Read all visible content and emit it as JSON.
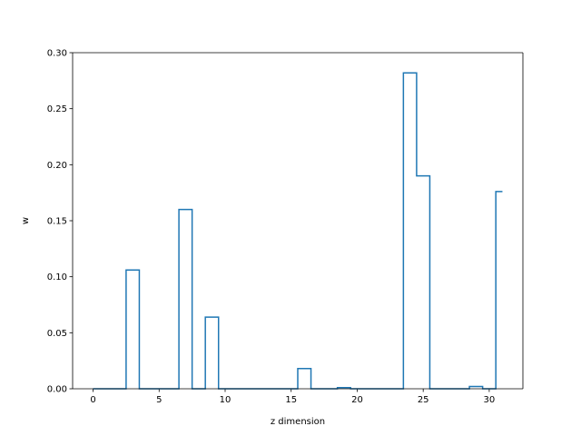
{
  "chart_data": {
    "type": "line",
    "style": "step",
    "step_where": "mid",
    "xlabel": "z dimension",
    "ylabel": "w",
    "xlim": [
      -1.55,
      32.55
    ],
    "ylim": [
      0.0,
      0.3
    ],
    "xticks": [
      0,
      5,
      10,
      15,
      20,
      25,
      30
    ],
    "xtick_labels": [
      "0",
      "5",
      "10",
      "15",
      "20",
      "25",
      "30"
    ],
    "yticks": [
      0.0,
      0.05,
      0.1,
      0.15,
      0.2,
      0.25,
      0.3
    ],
    "ytick_labels": [
      "0.00",
      "0.05",
      "0.10",
      "0.15",
      "0.20",
      "0.25",
      "0.30"
    ],
    "grid": false,
    "legend": "none",
    "line_color": "#1f77b4",
    "series": [
      {
        "x": [
          0,
          1,
          2,
          3,
          4,
          5,
          6,
          7,
          8,
          9,
          10,
          11,
          12,
          13,
          14,
          15,
          16,
          17,
          18,
          19,
          20,
          21,
          22,
          23,
          24,
          25,
          26,
          27,
          28,
          29,
          30,
          31
        ],
        "values": [
          0.0,
          0.0,
          0.0,
          0.106,
          0.0,
          0.0,
          0.0,
          0.16,
          0.0,
          0.064,
          0.0,
          0.0,
          0.0,
          0.0,
          0.0,
          0.0,
          0.018,
          0.0,
          0.0,
          0.001,
          0.0,
          0.0,
          0.0,
          0.0,
          0.282,
          0.19,
          0.0,
          0.0,
          0.0,
          0.002,
          0.0,
          0.176
        ]
      }
    ]
  }
}
